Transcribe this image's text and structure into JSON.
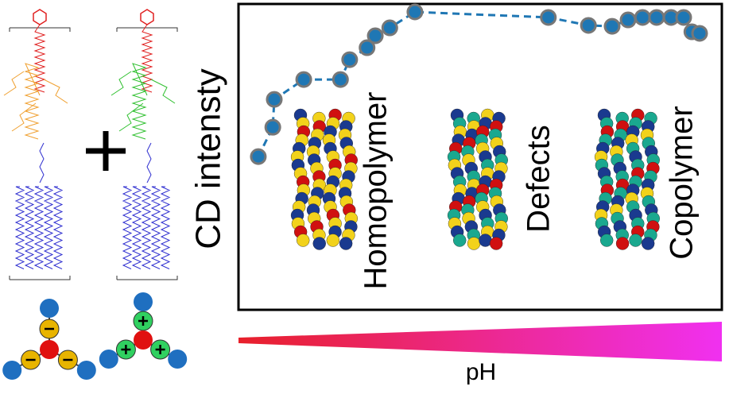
{
  "chart_data": {
    "type": "line",
    "y_label": "CD intensty",
    "x_label": "pH",
    "annotations": [
      "Homopolymer",
      "Defects",
      "Copolymer"
    ],
    "x": [
      4.1,
      7.1,
      7.4,
      13.5,
      21.1,
      23.0,
      26.6,
      28.3,
      31.3,
      36.5,
      64.1,
      72.4,
      77.3,
      80.6,
      83.6,
      86.5,
      89.5,
      92.1,
      93.8,
      95.4
    ],
    "values": [
      50.1,
      59.7,
      68.8,
      75.3,
      75.3,
      81.8,
      85.7,
      89.6,
      92.2,
      97.4,
      95.6,
      93.0,
      92.7,
      94.8,
      95.6,
      95.6,
      95.6,
      95.6,
      90.9,
      90.4
    ],
    "xlim": [
      0,
      100
    ],
    "ylim": [
      0,
      100
    ],
    "color": "#1f77b4"
  }
}
